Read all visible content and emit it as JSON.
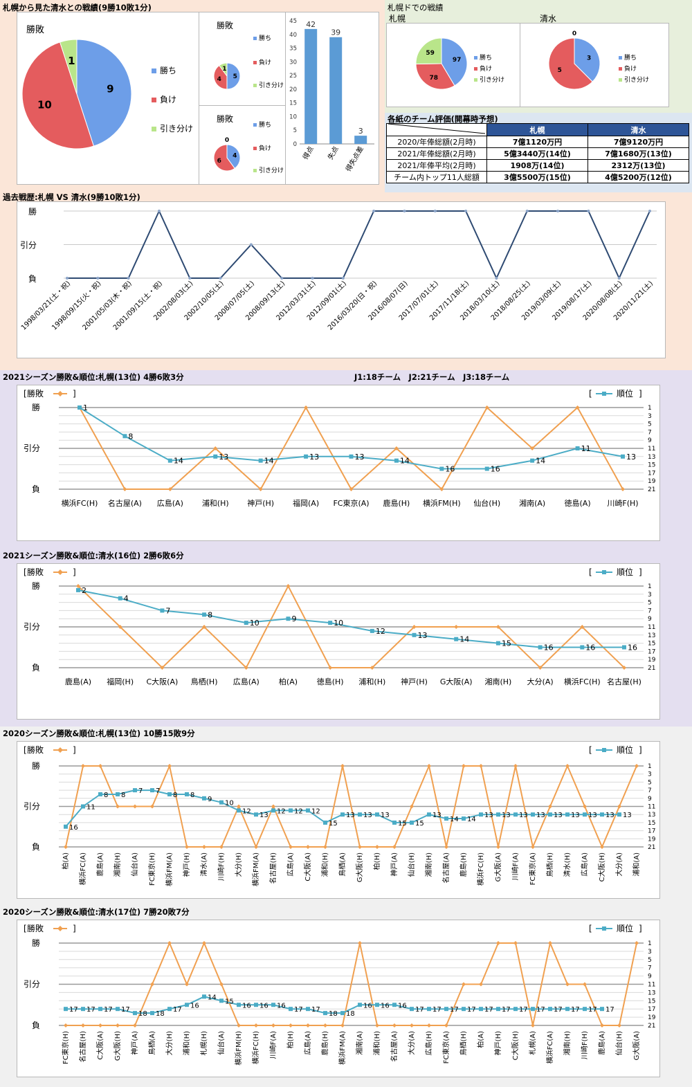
{
  "colors": {
    "win": "#6d9ee8",
    "loss": "#e45c5e",
    "draw": "#b9e58a",
    "result_line": "#f0a050",
    "rank_line": "#4bacc6",
    "history_line": "#2e4a72",
    "bar": "#5b9bd5"
  },
  "sec1": {
    "title": "札幌から見た清水との戦績(9勝10敗1分)",
    "big_pie": {
      "title": "勝敗",
      "legend": [
        "勝ち",
        "負け",
        "引き分け"
      ]
    },
    "small_pie1": {
      "title": "勝敗",
      "legend": [
        "勝ち",
        "負け",
        "引き分け"
      ]
    },
    "small_pie2": {
      "title": "勝敗",
      "legend": [
        "勝ち",
        "負け",
        "引き分け"
      ]
    },
    "dome_title": "札幌ドでの戦績",
    "dome_sapporo_label": "札幌",
    "dome_shimizu_label": "清水",
    "dome_legend": [
      "勝ち",
      "負け",
      "引き分け"
    ],
    "eval": {
      "title": "各紙のチーム評価(開幕時予想)",
      "col1": "札幌",
      "col2": "清水",
      "rows": [
        {
          "label": "2020/年俸総額(2月時)",
          "a": "7億1120万円",
          "b": "7億9120万円"
        },
        {
          "label": "2021/年俸総額(2月時)",
          "a": "5億3440万(14位)",
          "b": "7億1680万(13位)"
        },
        {
          "label": "2021/年俸平均(2月時)",
          "a": "1908万(14位)",
          "b": "2312万(13位)"
        },
        {
          "label": "チーム内トップ11人総額",
          "a": "3億5500万(15位)",
          "b": "4億5200万(12位)"
        }
      ]
    }
  },
  "sec2": {
    "title": "過去戦歴:札幌 VS 清水(9勝10敗1分)"
  },
  "sec3": {
    "title": "2021シーズン勝敗&順位:札幌(13位) 4勝6敗3分",
    "note": "J1:18チーム　J2:21チーム　J3:18チーム"
  },
  "sec4": {
    "title": "2021シーズン勝敗&順位:清水(16位) 2勝6敗6分"
  },
  "sec5": {
    "title": "2020シーズン勝敗&順位:札幌(13位) 10勝15敗9分"
  },
  "sec6": {
    "title": "2020シーズン勝敗&順位:清水(17位) 7勝20敗7分"
  },
  "chart_data": [
    {
      "id": "big-pie",
      "type": "pie",
      "labels": [
        "勝ち",
        "負け",
        "引き分け"
      ],
      "values": [
        9,
        10,
        1
      ]
    },
    {
      "id": "small-pie-1",
      "type": "pie",
      "labels": [
        "勝ち",
        "負け",
        "引き分け"
      ],
      "values": [
        5,
        4,
        1
      ]
    },
    {
      "id": "small-pie-2",
      "type": "pie",
      "labels": [
        "勝ち",
        "負け",
        "引き分け"
      ],
      "values": [
        4,
        6,
        0
      ]
    },
    {
      "id": "goals-bar",
      "type": "bar",
      "categories": [
        "得点",
        "失点",
        "得失点差"
      ],
      "values": [
        42,
        39,
        3
      ],
      "ylim": [
        0,
        45
      ],
      "yticks": [
        0,
        5,
        10,
        15,
        20,
        25,
        30,
        35,
        40,
        45
      ]
    },
    {
      "id": "dome-sapporo-pie",
      "type": "pie",
      "labels": [
        "勝ち",
        "負け",
        "引き分け"
      ],
      "values": [
        97,
        78,
        59
      ]
    },
    {
      "id": "dome-shimizu-pie",
      "type": "pie",
      "labels": [
        "勝ち",
        "負け",
        "引き分け"
      ],
      "values": [
        3,
        5,
        0
      ]
    },
    {
      "id": "history",
      "type": "line",
      "y_labels": [
        "勝",
        "引分",
        "負"
      ],
      "x": [
        "1998/03/21(土・祝)",
        "1998/09/15(火・祝)",
        "2001/05/03(木・祝)",
        "2001/09/15(土・祝)",
        "2002/08/03(土)",
        "2002/10/05(土)",
        "2008/07/05(土)",
        "2008/09/13(土)",
        "2012/03/31(土)",
        "2012/09/01(土)",
        "2016/03/20(日・祝)",
        "2016/08/07(日)",
        "2017/07/01(土)",
        "2017/11/18(土)",
        "2018/03/10(土)",
        "2018/08/25(土)",
        "2019/03/09(土)",
        "2019/08/17(土)",
        "2020/08/08(土)",
        "2020/11/21(土)"
      ],
      "results": [
        "負",
        "負",
        "負",
        "勝",
        "負",
        "負",
        "引分",
        "負",
        "負",
        "負",
        "勝",
        "勝",
        "勝",
        "勝",
        "負",
        "勝",
        "勝",
        "勝",
        "負",
        "勝"
      ]
    },
    {
      "id": "s2021-sapporo",
      "type": "line",
      "result_legend": "勝敗",
      "rank_legend": "順位",
      "result_labels": [
        "勝",
        "引分",
        "負"
      ],
      "rank_ticks": [
        1,
        3,
        5,
        7,
        9,
        11,
        13,
        15,
        17,
        19,
        21
      ],
      "x": [
        "横浜FC(H)",
        "名古屋(A)",
        "広島(A)",
        "浦和(H)",
        "神戸(H)",
        "福岡(A)",
        "FC東京(A)",
        "鹿島(H)",
        "横浜FM(H)",
        "仙台(H)",
        "湘南(A)",
        "徳島(A)",
        "川崎F(H)"
      ],
      "results": [
        "勝",
        "負",
        "負",
        "引分",
        "負",
        "勝",
        "負",
        "引分",
        "負",
        "勝",
        "引分",
        "勝",
        "負"
      ],
      "ranks": [
        1,
        8,
        14,
        13,
        14,
        13,
        13,
        14,
        16,
        16,
        14,
        11,
        13
      ]
    },
    {
      "id": "s2021-shimizu",
      "type": "line",
      "result_legend": "勝敗",
      "rank_legend": "順位",
      "result_labels": [
        "勝",
        "引分",
        "負"
      ],
      "rank_ticks": [
        1,
        3,
        5,
        7,
        9,
        11,
        13,
        15,
        17,
        19,
        21
      ],
      "x": [
        "鹿島(A)",
        "福岡(H)",
        "C大阪(A)",
        "鳥栖(H)",
        "広島(A)",
        "柏(A)",
        "徳島(H)",
        "浦和(H)",
        "神戸(H)",
        "G大阪(A)",
        "湘南(H)",
        "大分(A)",
        "横浜FC(H)",
        "名古屋(H)"
      ],
      "results": [
        "勝",
        "引分",
        "負",
        "引分",
        "負",
        "勝",
        "負",
        "負",
        "引分",
        "引分",
        "引分",
        "負",
        "引分",
        "負"
      ],
      "ranks": [
        2,
        4,
        7,
        8,
        10,
        9,
        10,
        12,
        13,
        14,
        15,
        16,
        16,
        16
      ]
    },
    {
      "id": "s2020-sapporo",
      "type": "line",
      "result_legend": "勝敗",
      "rank_legend": "順位",
      "result_labels": [
        "勝",
        "引分",
        "負"
      ],
      "rank_ticks": [
        1,
        3,
        5,
        7,
        9,
        11,
        13,
        15,
        17,
        19,
        21
      ],
      "x": [
        "柏(A)",
        "横浜FC(A)",
        "鹿島(A)",
        "湘南(H)",
        "仙台(A)",
        "FC東京(H)",
        "横浜FM(A)",
        "神戸(H)",
        "清水(A)",
        "川崎F(H)",
        "大分(H)",
        "横浜FM(A)",
        "名古屋(H)",
        "広島(A)",
        "C大阪(A)",
        "浦和(H)",
        "鳥栖(A)",
        "G大阪(H)",
        "柏(H)",
        "神戸(A)",
        "仙台(H)",
        "湘南(H)",
        "名古屋(A)",
        "鹿島(H)",
        "横浜FC(H)",
        "G大阪(A)",
        "川崎F(A)",
        "FC東京(A)",
        "鳥栖(H)",
        "清水(H)",
        "広島(A)",
        "C大阪(H)",
        "大分(A)",
        "浦和(A)"
      ],
      "results": [
        "負",
        "勝",
        "勝",
        "引分",
        "引分",
        "引分",
        "勝",
        "負",
        "負",
        "負",
        "引分",
        "負",
        "引分",
        "負",
        "負",
        "負",
        "勝",
        "負",
        "負",
        "負",
        "引分",
        "勝",
        "負",
        "勝",
        "勝",
        "負",
        "勝",
        "負",
        "引分",
        "勝",
        "引分",
        "負",
        "引分",
        "勝"
      ],
      "ranks": [
        16,
        11,
        8,
        8,
        7,
        7,
        8,
        8,
        9,
        10,
        12,
        13,
        12,
        12,
        12,
        15,
        13,
        13,
        13,
        15,
        15,
        13,
        14,
        14,
        13,
        13,
        13,
        13,
        13,
        13,
        13,
        13,
        13,
        null
      ]
    },
    {
      "id": "s2020-shimizu",
      "type": "line",
      "result_legend": "勝敗",
      "rank_legend": "順位",
      "result_labels": [
        "勝",
        "引分",
        "負"
      ],
      "rank_ticks": [
        1,
        3,
        5,
        7,
        9,
        11,
        13,
        15,
        17,
        19,
        21
      ],
      "x": [
        "FC東京(H)",
        "名古屋(H)",
        "C大阪(A)",
        "G大阪(H)",
        "神戸(A)",
        "鳥栖(A)",
        "大分(H)",
        "浦和(H)",
        "札幌(H)",
        "仙台(A)",
        "横浜FM(H)",
        "横浜FC(H)",
        "川崎F(A)",
        "柏(H)",
        "広島(A)",
        "鹿島(H)",
        "横浜FM(A)",
        "湘南(A)",
        "浦和(H)",
        "名古屋(A)",
        "大分(A)",
        "広島(H)",
        "FC東京(A)",
        "鳥栖(H)",
        "柏(A)",
        "神戸(H)",
        "C大阪(H)",
        "札幌(A)",
        "横浜FC(A)",
        "湘南(H)",
        "川崎F(H)",
        "鹿島(A)",
        "仙台(H)",
        "G大阪(A)"
      ],
      "results": [
        "負",
        "負",
        "負",
        "負",
        "負",
        "引分",
        "勝",
        "引分",
        "勝",
        "引分",
        "負",
        "負",
        "負",
        "負",
        "負",
        "負",
        "負",
        "勝",
        "負",
        "負",
        "負",
        "負",
        "負",
        "引分",
        "引分",
        "勝",
        "勝",
        "負",
        "勝",
        "引分",
        "引分",
        "負",
        "負",
        "勝"
      ],
      "ranks": [
        17,
        17,
        17,
        17,
        18,
        18,
        17,
        16,
        14,
        15,
        16,
        16,
        16,
        17,
        17,
        18,
        18,
        16,
        16,
        16,
        17,
        17,
        17,
        17,
        17,
        17,
        17,
        17,
        17,
        17,
        17,
        17,
        null,
        null
      ]
    }
  ]
}
